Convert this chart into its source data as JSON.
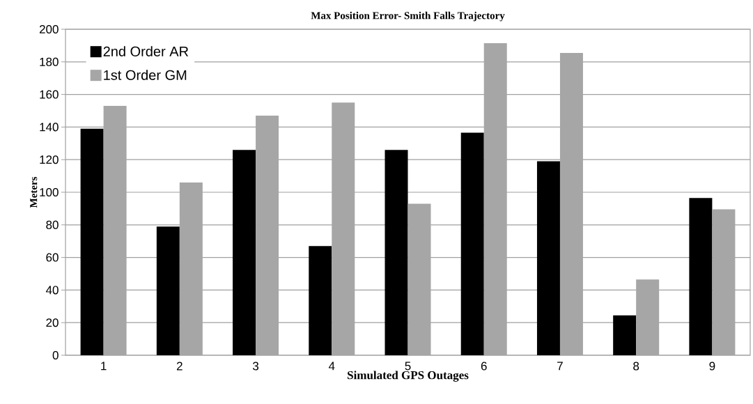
{
  "chart_data": {
    "type": "bar",
    "title": "Max Position Error- Smith Falls Trajectory",
    "xlabel": "Simulated GPS Outages",
    "ylabel": "Meters",
    "categories": [
      "1",
      "2",
      "3",
      "4",
      "5",
      "6",
      "7",
      "8",
      "9"
    ],
    "series": [
      {
        "name": "2nd Order AR",
        "color": "#000000",
        "values": [
          139,
          79,
          126,
          67,
          126,
          136.5,
          119,
          24.5,
          96.5
        ]
      },
      {
        "name": "1st Order GM",
        "color": "#a6a6a6",
        "values": [
          153,
          106,
          147,
          155,
          93,
          191.5,
          185.5,
          46.5,
          89.5
        ]
      }
    ],
    "ylim": [
      0,
      200
    ],
    "yticks": [
      0,
      20,
      40,
      60,
      80,
      100,
      120,
      140,
      160,
      180,
      200
    ],
    "grid": "y",
    "legend": "top left"
  }
}
